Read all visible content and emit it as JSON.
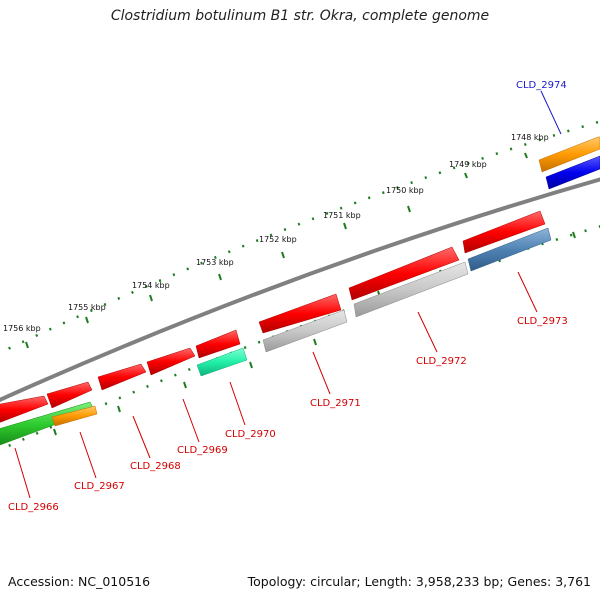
{
  "title": "Clostridium botulinum B1 str. Okra, complete genome",
  "footer": {
    "accession": "Accession: NC_010516",
    "topology": "Topology: circular; Length: 3,958,233 bp; Genes: 3,761"
  },
  "colors": {
    "backbone": "#808080",
    "tick": "#1e7d1e",
    "red_label": "#d40000",
    "blue_label": "#1a1acc"
  },
  "ticks": [
    {
      "label": "1748 kbp"
    },
    {
      "label": "1749 kbp"
    },
    {
      "label": "1750 kbp"
    },
    {
      "label": "1751 kbp"
    },
    {
      "label": "1752 kbp"
    },
    {
      "label": "1753 kbp"
    },
    {
      "label": "1754 kbp"
    },
    {
      "label": "1755 kbp"
    },
    {
      "label": "1756 kbp"
    }
  ],
  "genes": [
    {
      "label": "CLD_2966",
      "color": "#d40000",
      "label_color": "#d40000"
    },
    {
      "label": "CLD_2967",
      "color": "#d40000",
      "label_color": "#d40000"
    },
    {
      "label": "CLD_2968",
      "color": "#d40000",
      "label_color": "#d40000"
    },
    {
      "label": "CLD_2969",
      "color": "#d40000",
      "label_color": "#d40000"
    },
    {
      "label": "CLD_2970",
      "color": "#d40000",
      "label_color": "#d40000"
    },
    {
      "label": "CLD_2971",
      "color": "#d40000",
      "label_color": "#d40000"
    },
    {
      "label": "CLD_2972",
      "color": "#d40000",
      "label_color": "#d40000"
    },
    {
      "label": "CLD_2973",
      "color": "#d40000",
      "label_color": "#d40000"
    },
    {
      "label": "CLD_2974",
      "color": "#1a1acc",
      "label_color": "#1a1acc"
    }
  ]
}
